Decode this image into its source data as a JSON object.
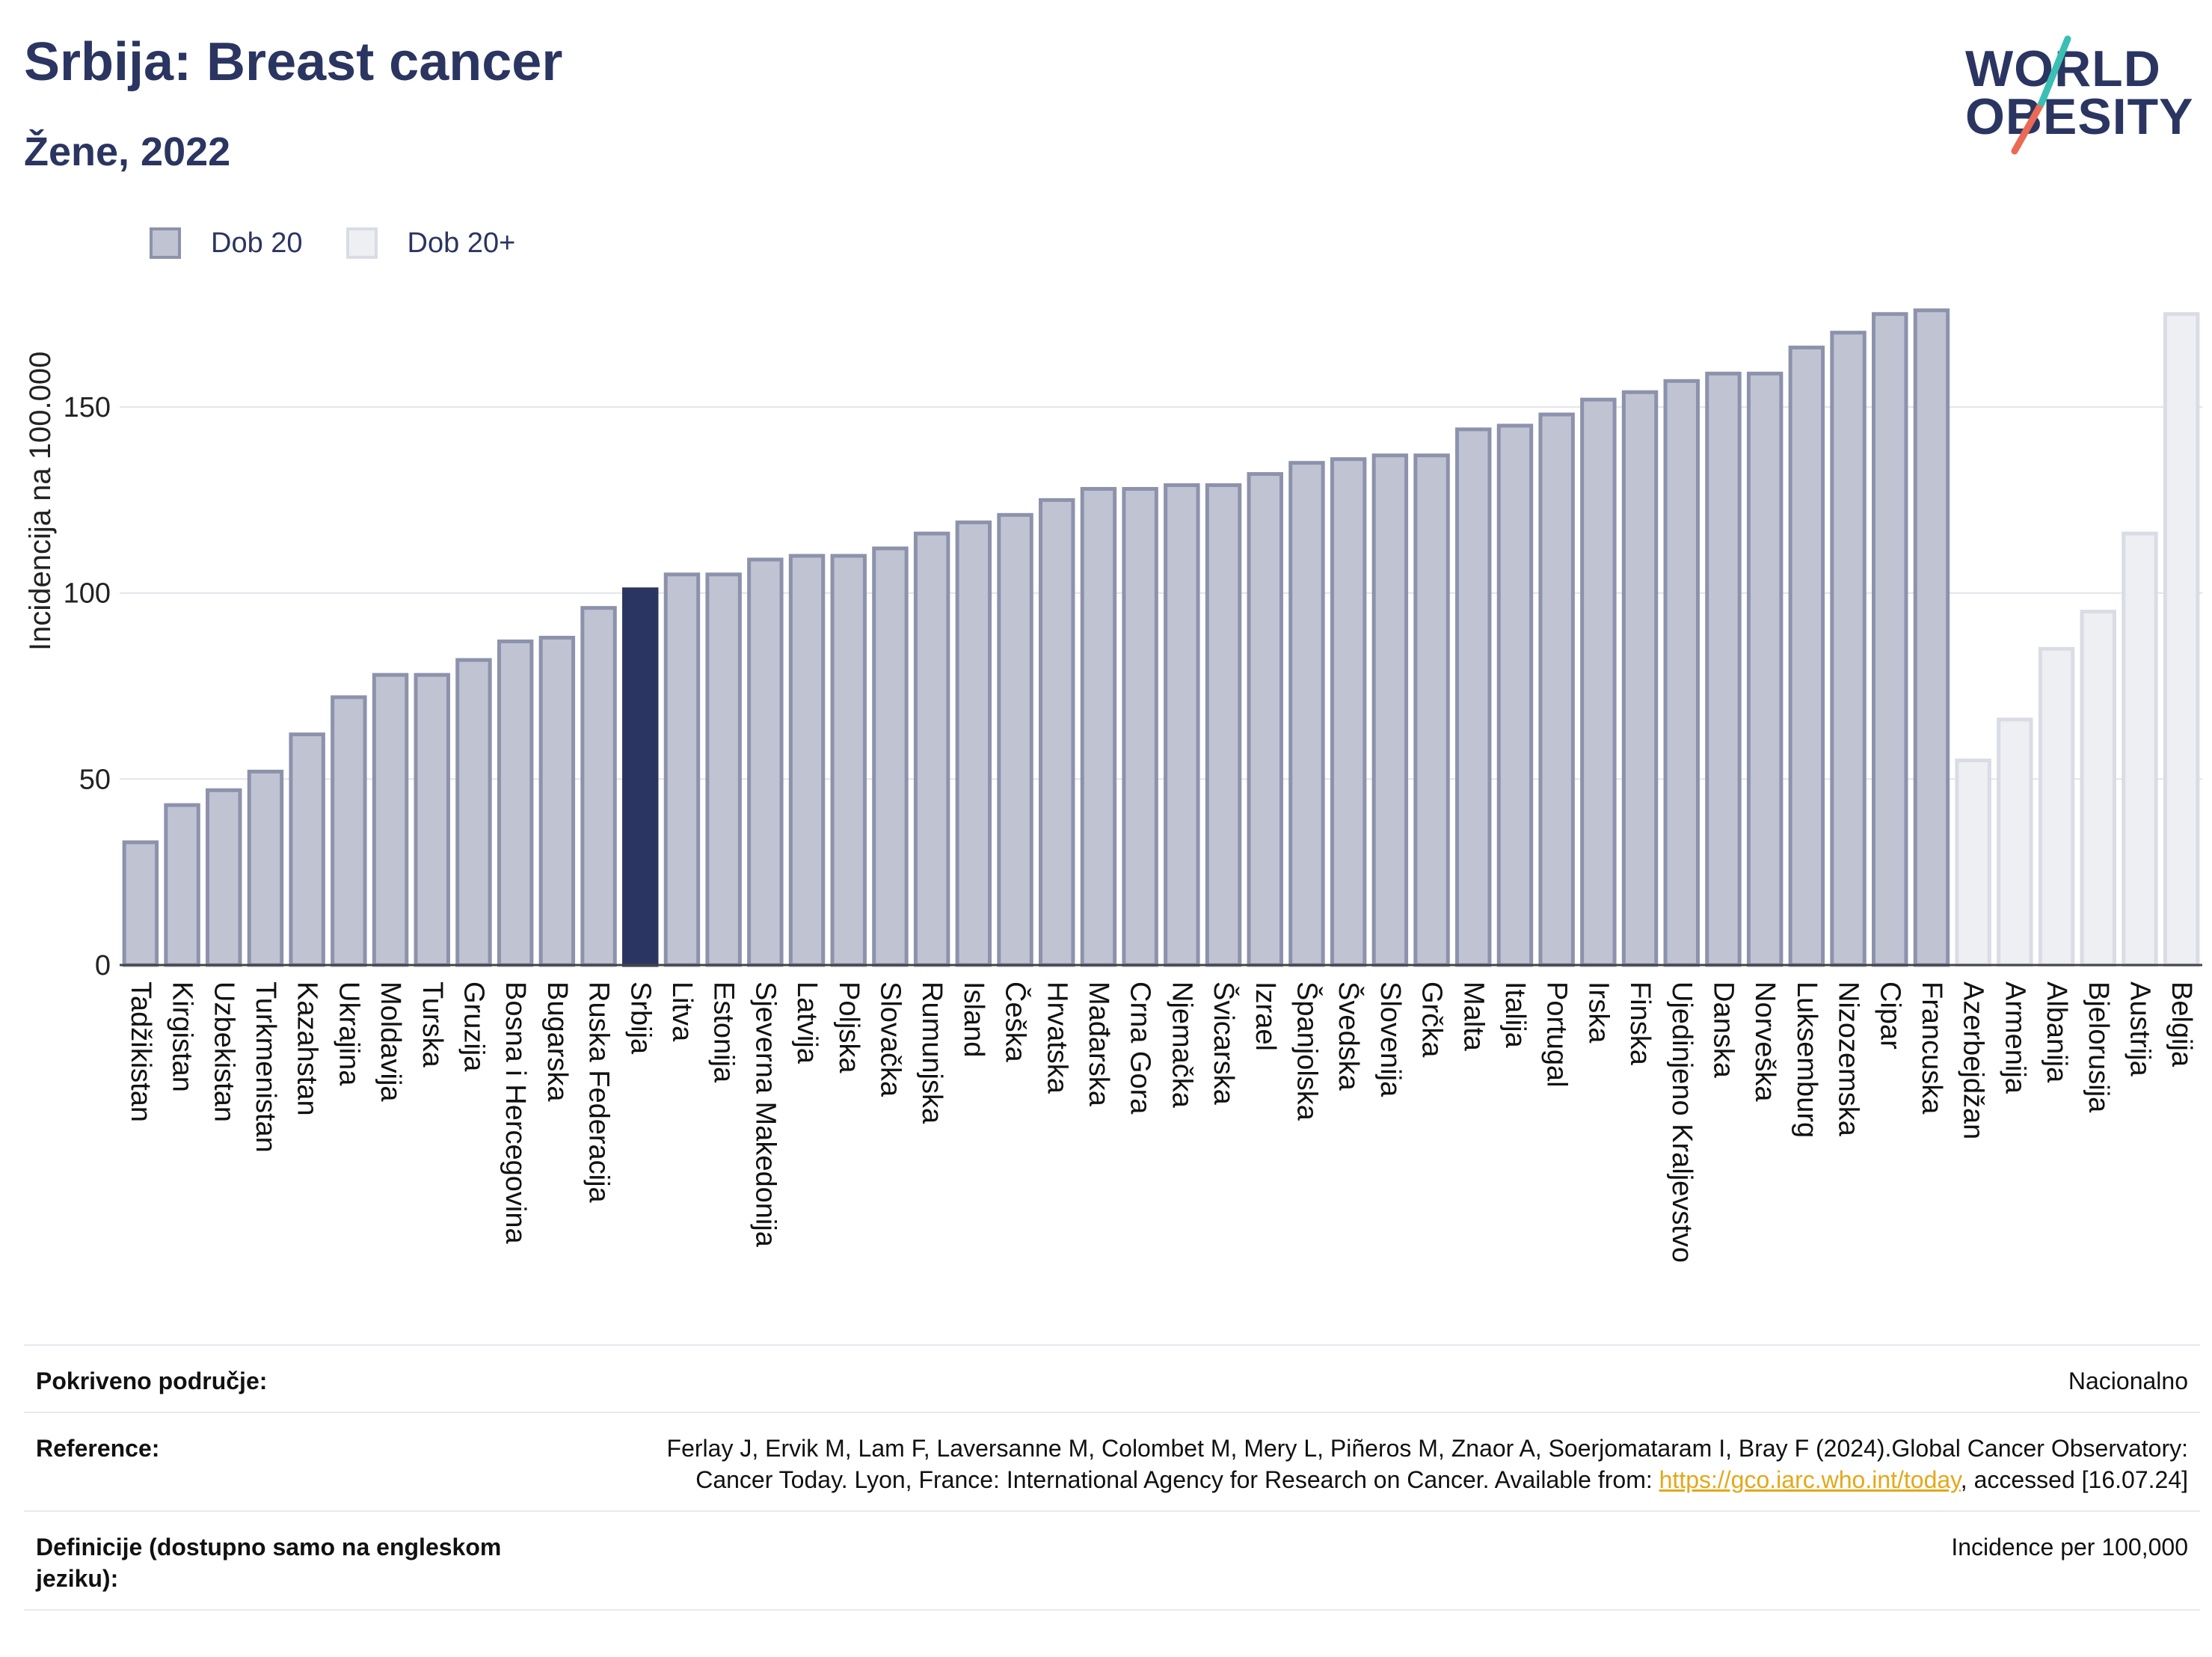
{
  "header": {
    "title": "Srbija: Breast cancer",
    "subtitle": "Žene, 2022"
  },
  "logo": {
    "line1": "WORLD",
    "line2": "OBESITY",
    "slash_colors": [
      "#3bbfb5",
      "#ea6a55"
    ]
  },
  "legend": {
    "items": [
      {
        "label": "Dob 20",
        "color": "#c0c3d2"
      },
      {
        "label": "Dob 20+",
        "color": "#eeeff3"
      }
    ]
  },
  "chart_data": {
    "type": "bar",
    "ylabel": "Incidencija na 100.000",
    "ylim": [
      0,
      183
    ],
    "yticks": [
      0,
      50,
      100,
      150
    ],
    "grid": true,
    "highlight": "Srbija",
    "highlight_color": "#2b3561",
    "categories": [
      "Tadžikistan",
      "Kirgistan",
      "Uzbekistan",
      "Turkmenistan",
      "Kazahstan",
      "Ukrajina",
      "Moldavija",
      "Turska",
      "Gruzija",
      "Bosna i Hercegovina",
      "Bugarska",
      "Ruska Federacija",
      "Srbija",
      "Litva",
      "Estonija",
      "Sjeverna Makedonija",
      "Latvija",
      "Poljska",
      "Slovačka",
      "Rumunjska",
      "Island",
      "Češka",
      "Hrvatska",
      "Mađarska",
      "Crna Gora",
      "Njemačka",
      "Švicarska",
      "Izrael",
      "Španjolska",
      "Švedska",
      "Slovenija",
      "Grčka",
      "Malta",
      "Italija",
      "Portugal",
      "Irska",
      "Finska",
      "Ujedinjeno Kraljevstvo",
      "Danska",
      "Norveška",
      "Luksemburg",
      "Nizozemska",
      "Cipar",
      "Francuska",
      "Azerbejdžan",
      "Armenija",
      "Albanija",
      "Bjelorusija",
      "Austrija",
      "Belgija"
    ],
    "values": [
      33,
      43,
      47,
      52,
      62,
      72,
      78,
      78,
      82,
      87,
      88,
      96,
      101,
      105,
      105,
      109,
      110,
      110,
      112,
      116,
      119,
      121,
      125,
      128,
      128,
      129,
      129,
      132,
      135,
      136,
      137,
      137,
      144,
      145,
      148,
      152,
      154,
      157,
      159,
      159,
      166,
      170,
      175,
      176,
      55,
      66,
      85,
      95,
      116,
      175
    ],
    "series_group": [
      "Dob 20",
      "Dob 20",
      "Dob 20",
      "Dob 20",
      "Dob 20",
      "Dob 20",
      "Dob 20",
      "Dob 20",
      "Dob 20",
      "Dob 20",
      "Dob 20",
      "Dob 20",
      "Dob 20",
      "Dob 20",
      "Dob 20",
      "Dob 20",
      "Dob 20",
      "Dob 20",
      "Dob 20",
      "Dob 20",
      "Dob 20",
      "Dob 20",
      "Dob 20",
      "Dob 20",
      "Dob 20",
      "Dob 20",
      "Dob 20",
      "Dob 20",
      "Dob 20",
      "Dob 20",
      "Dob 20",
      "Dob 20",
      "Dob 20",
      "Dob 20",
      "Dob 20",
      "Dob 20",
      "Dob 20",
      "Dob 20",
      "Dob 20",
      "Dob 20",
      "Dob 20",
      "Dob 20",
      "Dob 20",
      "Dob 20",
      "Dob 20+",
      "Dob 20+",
      "Dob 20+",
      "Dob 20+",
      "Dob 20+",
      "Dob 20+"
    ]
  },
  "info": {
    "coverage_label": "Pokriveno područje:",
    "coverage_value": "Nacionalno",
    "reference_label": "Reference:",
    "reference_text": "Ferlay J, Ervik M, Lam F, Laversanne M, Colombet M, Mery L, Piñeros M, Znaor A, Soerjomataram I, Bray F (2024).Global Cancer Observatory: Cancer Today. Lyon, France: International Agency for Research on Cancer. Available from: ",
    "reference_link": "https://gco.iarc.who.int/today",
    "reference_suffix": ", accessed [16.07.24]",
    "definitions_label": "Definicije (dostupno samo na engleskom jeziku):",
    "definitions_value": "Incidence per 100,000"
  }
}
